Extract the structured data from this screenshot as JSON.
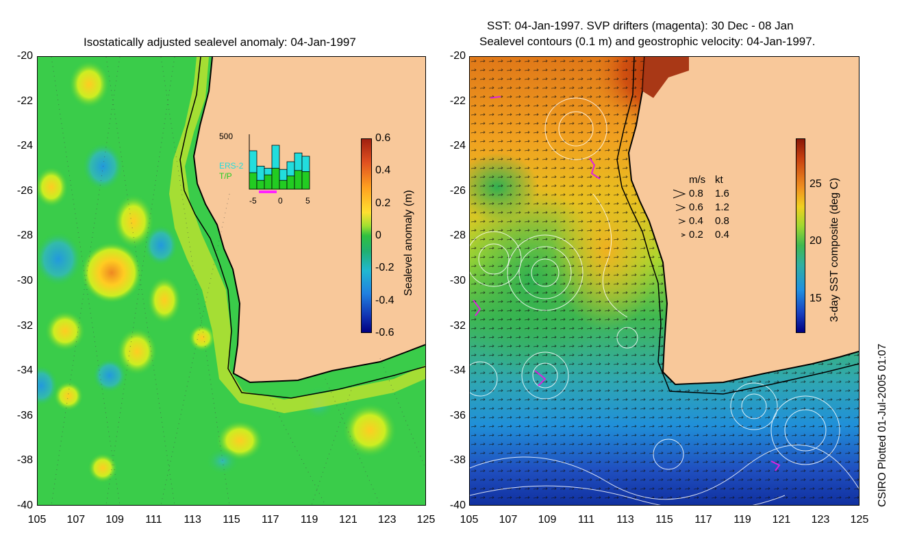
{
  "left_panel": {
    "title": "Isostatically adjusted sealevel anomaly: 04-Jan-1997",
    "colorbar": {
      "label": "Sealevel anomaly (m)",
      "ticks": [
        "0.6",
        "0.4",
        "0.2",
        "0",
        "-0.2",
        "-0.4",
        "-0.6"
      ],
      "range": [
        -0.6,
        0.6
      ]
    },
    "inset": {
      "ymax_label": "500",
      "x_ticks": [
        "-5",
        "0",
        "5"
      ],
      "series": [
        {
          "name": "ERS-2",
          "color": "#22dddd",
          "values": [
            350,
            210,
            190,
            400,
            180,
            250,
            330,
            300
          ]
        },
        {
          "name": "T/P",
          "color": "#22cc22",
          "values": [
            150,
            80,
            130,
            190,
            80,
            120,
            170,
            160
          ]
        }
      ]
    }
  },
  "right_panel": {
    "title_line1": "SST: 04-Jan-1997. SVP drifters (magenta): 30 Dec - 08 Jan",
    "title_line2": "Sealevel contours (0.1 m) and geostrophic velocity: 04-Jan-1997.",
    "colorbar": {
      "label": "3-day SST composite (deg C)",
      "ticks": [
        "25",
        "20",
        "15"
      ],
      "range": [
        12,
        29
      ]
    },
    "velocity_legend": {
      "header_ms": "m/s",
      "header_kt": "kt",
      "rows": [
        {
          "ms": "0.8",
          "kt": "1.6"
        },
        {
          "ms": "0.6",
          "kt": "1.2"
        },
        {
          "ms": "0.4",
          "kt": "0.8"
        },
        {
          "ms": "0.2",
          "kt": "0.4"
        }
      ]
    }
  },
  "axes": {
    "y_ticks": [
      "-20",
      "-22",
      "-24",
      "-26",
      "-28",
      "-30",
      "-32",
      "-34",
      "-36",
      "-38",
      "-40"
    ],
    "x_ticks": [
      "105",
      "107",
      "109",
      "111",
      "113",
      "115",
      "117",
      "119",
      "121",
      "123",
      "125"
    ],
    "lat_range": [
      -40,
      -20
    ],
    "lon_range": [
      105,
      125
    ]
  },
  "credit": "CSIRO Plotted 01-Jul-2005 01:07",
  "colors": {
    "land": "#f8c89a",
    "ocean_green": "#33cc44",
    "ocean_deep": "#1133aa",
    "coast": "#000000"
  }
}
